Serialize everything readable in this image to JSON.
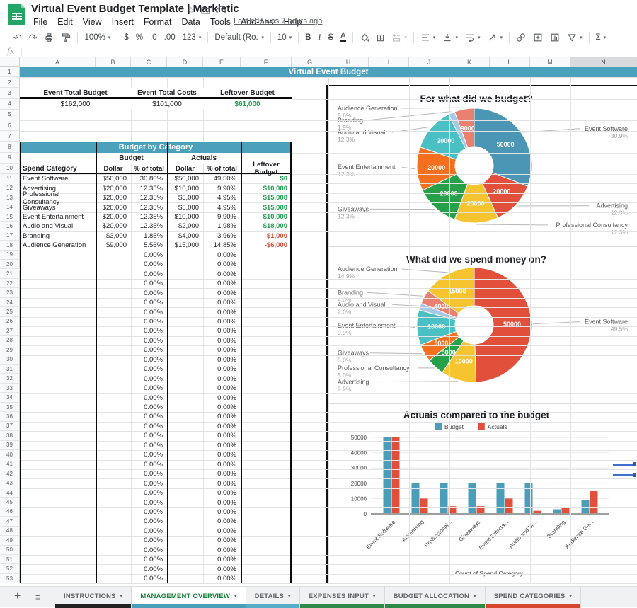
{
  "app": {
    "title": "Virtual Event Budget Template | Markletic",
    "menu": [
      "File",
      "Edit",
      "View",
      "Insert",
      "Format",
      "Data",
      "Tools",
      "Add-ons",
      "Help"
    ],
    "last_edit": "Last edit was 7 hours ago"
  },
  "toolbar": {
    "items": [
      {
        "name": "undo-icon",
        "type": "glyph",
        "label": "↶"
      },
      {
        "name": "redo-icon",
        "type": "glyph",
        "label": "↷"
      },
      {
        "name": "print-icon",
        "type": "icon",
        "icon": "print"
      },
      {
        "name": "paint-format-icon",
        "type": "icon",
        "icon": "paint"
      },
      {
        "type": "divider"
      },
      {
        "name": "zoom-select",
        "type": "text",
        "label": "100%",
        "caret": true
      },
      {
        "type": "divider"
      },
      {
        "name": "currency-format-button",
        "type": "text",
        "label": "$"
      },
      {
        "name": "percent-format-button",
        "type": "text",
        "label": "%"
      },
      {
        "name": "decrease-decimal-button",
        "type": "text",
        "label": ".0"
      },
      {
        "name": "increase-decimal-button",
        "type": "text",
        "label": ".00"
      },
      {
        "name": "more-formats-button",
        "type": "text",
        "label": "123",
        "caret": true
      },
      {
        "type": "divider"
      },
      {
        "name": "font-select",
        "type": "text",
        "label": "Default (Ro...",
        "caret": true,
        "wide": true
      },
      {
        "type": "divider"
      },
      {
        "name": "font-size-select",
        "type": "text",
        "label": "10",
        "caret": true
      },
      {
        "type": "divider"
      },
      {
        "name": "bold-button",
        "type": "text",
        "label": "B",
        "style": "b"
      },
      {
        "name": "italic-button",
        "type": "text",
        "label": "I",
        "style": "i"
      },
      {
        "name": "strikethrough-button",
        "type": "text",
        "label": "S",
        "style": "s"
      },
      {
        "name": "text-color-button",
        "type": "text",
        "label": "A",
        "style": "a"
      },
      {
        "type": "divider"
      },
      {
        "name": "fill-color-icon",
        "type": "icon",
        "icon": "fill"
      },
      {
        "name": "borders-icon",
        "type": "glyph",
        "label": "⊞"
      },
      {
        "name": "merge-cells-icon",
        "type": "icon",
        "icon": "merge",
        "dim": true,
        "caret": true
      },
      {
        "type": "divider"
      },
      {
        "name": "horizontal-align-icon",
        "type": "icon",
        "icon": "halign",
        "caret": true
      },
      {
        "name": "vertical-align-icon",
        "type": "icon",
        "icon": "valign",
        "caret": true
      },
      {
        "name": "text-wrap-icon",
        "type": "icon",
        "icon": "wrap",
        "caret": true
      },
      {
        "name": "text-rotation-icon",
        "type": "icon",
        "icon": "rotate",
        "caret": true
      },
      {
        "type": "divider"
      },
      {
        "name": "link-icon",
        "type": "icon",
        "icon": "link"
      },
      {
        "name": "comment-icon",
        "type": "icon",
        "icon": "comment"
      },
      {
        "name": "chart-icon",
        "type": "icon",
        "icon": "chart"
      },
      {
        "name": "filter-icon",
        "type": "icon",
        "icon": "filter",
        "caret": true
      },
      {
        "type": "divider"
      },
      {
        "name": "functions-button",
        "type": "text",
        "label": "Σ",
        "caret": true
      }
    ]
  },
  "formula_bar": {
    "fx_label": "fx"
  },
  "grid": {
    "columns": [
      "A",
      "B",
      "C",
      "D",
      "E",
      "F",
      "G",
      "H",
      "I",
      "J",
      "K",
      "L",
      "M",
      "N"
    ],
    "selected_column": "N",
    "row_count": 53
  },
  "sheet": {
    "banner": "Virtual Event Budget",
    "summary": {
      "headers": [
        "Event Total Budget",
        "Event Total Costs",
        "Leftover Budget"
      ],
      "values": [
        "$162,000",
        "$101,000",
        "$61,000"
      ],
      "value_colors": [
        "#202124",
        "#202124",
        "#1e9e4f"
      ]
    },
    "category_table": {
      "title": "Budget by Category",
      "group_headers": [
        "Budget",
        "Actuals"
      ],
      "columns": [
        "Spend Category",
        "Dollar",
        "% of total",
        "Dollar",
        "% of total",
        "Leftover Budget"
      ],
      "rows": [
        {
          "category": "Event Software",
          "budget": "$50,000",
          "budget_pct": "30.86%",
          "actual": "$50,000",
          "actual_pct": "49.50%",
          "leftover": "$0"
        },
        {
          "category": "Advertising",
          "budget": "$20,000",
          "budget_pct": "12.35%",
          "actual": "$10,000",
          "actual_pct": "9.90%",
          "leftover": "$10,000"
        },
        {
          "category": "Professional Consultancy",
          "budget": "$20,000",
          "budget_pct": "12.35%",
          "actual": "$5,000",
          "actual_pct": "4.95%",
          "leftover": "$15,000"
        },
        {
          "category": "Giveaways",
          "budget": "$20,000",
          "budget_pct": "12.35%",
          "actual": "$5,000",
          "actual_pct": "4.95%",
          "leftover": "$15,000"
        },
        {
          "category": "Event Entertainment",
          "budget": "$20,000",
          "budget_pct": "12.35%",
          "actual": "$10,000",
          "actual_pct": "9.90%",
          "leftover": "$10,000"
        },
        {
          "category": "Audio and Visual",
          "budget": "$20,000",
          "budget_pct": "12.35%",
          "actual": "$2,000",
          "actual_pct": "1.98%",
          "leftover": "$18,000"
        },
        {
          "category": "Branding",
          "budget": "$3,000",
          "budget_pct": "1.85%",
          "actual": "$4,000",
          "actual_pct": "3.96%",
          "leftover": "-$1,000"
        },
        {
          "category": "Audience Generation",
          "budget": "$9,000",
          "budget_pct": "5.56%",
          "actual": "$15,000",
          "actual_pct": "14.85%",
          "leftover": "-$6,000"
        }
      ],
      "empty_row_pct": "0.00%",
      "empty_rows_from": 19,
      "empty_rows_to": 53,
      "positive_color": "#1e9e4f",
      "negative_color": "#e04b38"
    }
  },
  "chart_data": [
    {
      "type": "pie",
      "title": "For what did we budget?",
      "total": 162000,
      "slices": [
        {
          "label": "Event Software",
          "value": 50000,
          "pct": "30.9%",
          "color": "#4a96b4",
          "side": "right"
        },
        {
          "label": "Advertising",
          "value": 20000,
          "pct": "12.3%",
          "color": "#e2503c",
          "side": "right"
        },
        {
          "label": "Professional Consultancy",
          "value": 20000,
          "pct": "12.3%",
          "color": "#f5c42e",
          "side": "right"
        },
        {
          "label": "Giveaways",
          "value": 20000,
          "pct": "12.3%",
          "color": "#27a149",
          "side": "left"
        },
        {
          "label": "Event Entertainment",
          "value": 20000,
          "pct": "12.3%",
          "color": "#f4701f",
          "side": "left"
        },
        {
          "label": "Audio and Visual",
          "value": 20000,
          "pct": "12.3%",
          "color": "#4ac0c4",
          "side": "left"
        },
        {
          "label": "Branding",
          "value": 3000,
          "pct": "1.9%",
          "color": "#a9c8e8",
          "side": "left"
        },
        {
          "label": "Audience Generation",
          "value": 9000,
          "pct": "5.6%",
          "color": "#ea8070",
          "side": "left"
        }
      ]
    },
    {
      "type": "pie",
      "title": "What did we spend money on?",
      "total": 101000,
      "slices": [
        {
          "label": "Event Software",
          "value": 50000,
          "pct": "49.5%",
          "color": "#e2503c",
          "side": "right"
        },
        {
          "label": "Advertising",
          "value": 10000,
          "pct": "9.9%",
          "color": "#f5c42e",
          "side": "left"
        },
        {
          "label": "Professional Consultancy",
          "value": 5000,
          "pct": "5.0%",
          "color": "#27a149",
          "side": "left"
        },
        {
          "label": "Giveaways",
          "value": 5000,
          "pct": "5.0%",
          "color": "#f4701f",
          "side": "left"
        },
        {
          "label": "Event Entertainment",
          "value": 10000,
          "pct": "9.9%",
          "color": "#4ac0c4",
          "side": "left"
        },
        {
          "label": "Audio and Visual",
          "value": 2000,
          "pct": "2.0%",
          "color": "#a9c8e8",
          "side": "left"
        },
        {
          "label": "Branding",
          "value": 4000,
          "pct": "4.0%",
          "color": "#ea8070",
          "side": "left"
        },
        {
          "label": "Audience Generation",
          "value": 15000,
          "pct": "14.9%",
          "color": "#f5c42e",
          "side": "left"
        }
      ]
    },
    {
      "type": "bar",
      "title": "Actuals compared to the budget",
      "xlabel": "Count of Spend Category",
      "categories": [
        "Event Software",
        "Advertising",
        "Professional...",
        "Giveaways",
        "Event Enterta...",
        "Audio and Vi...",
        "Branding",
        "Audience Ge..."
      ],
      "series": [
        {
          "name": "Budget",
          "color": "#4a9eb9",
          "values": [
            50000,
            20000,
            20000,
            20000,
            20000,
            20000,
            3000,
            9000
          ]
        },
        {
          "name": "Actuals",
          "color": "#e2503c",
          "values": [
            50000,
            10000,
            5000,
            5000,
            10000,
            2000,
            4000,
            15000
          ]
        }
      ],
      "yticks": [
        0,
        10000,
        20000,
        30000,
        40000,
        50000
      ],
      "ylim": [
        0,
        50000
      ],
      "grid": true,
      "legend_position": "top"
    }
  ],
  "sheet_tabs": {
    "add_label": "+",
    "active_text_color": "#188038",
    "tabs": [
      {
        "label": "INSTRUCTIONS",
        "color": "#212121",
        "active": false
      },
      {
        "label": "MANAGEMENT OVERVIEW",
        "color": "#4a9eb9",
        "active": true
      },
      {
        "label": "DETAILS",
        "color": "#55adc9",
        "active": false
      },
      {
        "label": "EXPENSES INPUT",
        "color": "#2f8a47",
        "active": false
      },
      {
        "label": "BUDGET ALLOCATION",
        "color": "#2f8a47",
        "active": false
      },
      {
        "label": "SPEND CATEGORIES",
        "color": "#d5452f",
        "active": false
      }
    ]
  }
}
